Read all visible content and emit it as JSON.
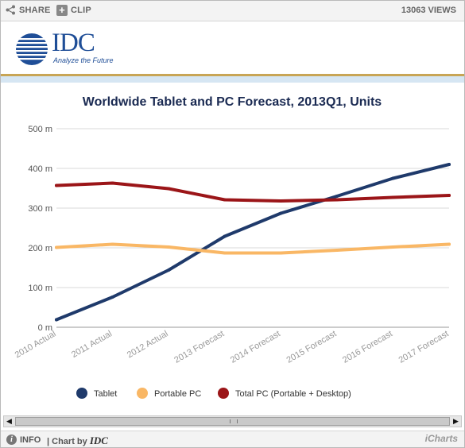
{
  "toolbar": {
    "share_label": "SHARE",
    "clip_label": "CLIP",
    "views_label": "13063 VIEWS"
  },
  "logo": {
    "text": "IDC",
    "tagline": "Analyze the Future"
  },
  "footer": {
    "info_label": "INFO",
    "chart_by_label": "| Chart by",
    "chart_by_brand": "IDC",
    "icharts_label": "iCharts"
  },
  "colors": {
    "tablet": "#1f3a6b",
    "portable_pc": "#f9b765",
    "total_pc": "#9b1518",
    "grid": "#d9d9d9",
    "logo_blue": "#1f4e97"
  },
  "chart_data": {
    "type": "line",
    "title": "Worldwide Tablet and PC Forecast, 2013Q1, Units",
    "xlabel": "",
    "ylabel": "",
    "categories": [
      "2010 Actual",
      "2011 Actual",
      "2012 Actual",
      "2013 Forecast",
      "2014 Forecast",
      "2015 Forecast",
      "2016 Forecast",
      "2017 Forecast"
    ],
    "ylim": [
      0,
      500
    ],
    "yticks": [
      0,
      100,
      200,
      300,
      400,
      500
    ],
    "ytick_labels": [
      "0 m",
      "100 m",
      "200 m",
      "300 m",
      "400 m",
      "500 m"
    ],
    "grid": true,
    "legend_position": "bottom",
    "series": [
      {
        "name": "Tablet",
        "color": "#1f3a6b",
        "values": [
          19,
          76,
          144,
          229,
          287,
          330,
          375,
          410
        ]
      },
      {
        "name": "Portable PC",
        "color": "#f9b765",
        "values": [
          201,
          209,
          202,
          187,
          187,
          194,
          202,
          209
        ]
      },
      {
        "name": "Total PC (Portable + Desktop)",
        "color": "#9b1518",
        "values": [
          357,
          363,
          349,
          321,
          318,
          321,
          327,
          332
        ]
      }
    ]
  }
}
